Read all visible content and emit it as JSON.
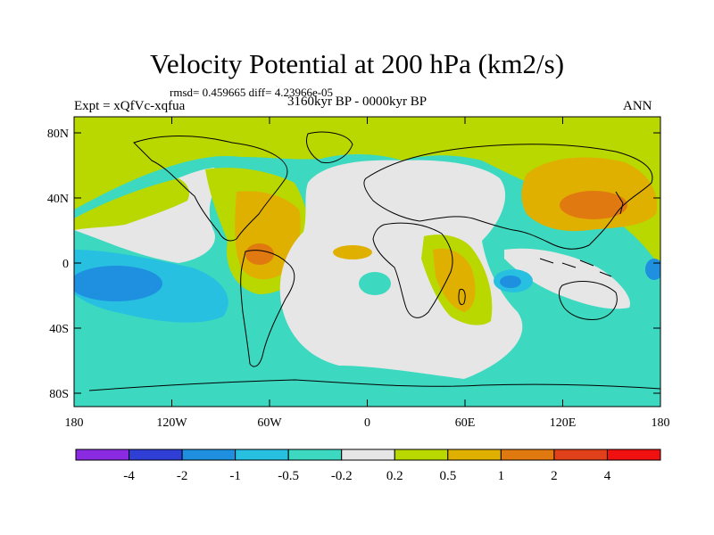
{
  "title": "Velocity Potential at 200 hPa (km2/s)",
  "stats_line": "rmsd= 0.459665 diff= 4.23966e-05",
  "experiment_label": "Expt = xQfVc-xqfua",
  "period_label": "3160kyr BP - 0000kyr BP",
  "season_label": "ANN",
  "axes": {
    "lat_ticks": [
      "80N",
      "40N",
      "0",
      "40S",
      "80S"
    ],
    "lon_ticks": [
      "180",
      "120W",
      "60W",
      "0",
      "60E",
      "120E",
      "180"
    ]
  },
  "colorbar": {
    "levels": [
      "-4",
      "-2",
      "-1",
      "-0.5",
      "-0.2",
      "0.2",
      "0.5",
      "1",
      "2",
      "4"
    ],
    "colors": [
      "#8a2be2",
      "#2f3fd6",
      "#1f8fe0",
      "#27c0e0",
      "#3cd9c0",
      "#e6e6e6",
      "#b8d800",
      "#e0b000",
      "#e07a10",
      "#e0401a",
      "#f01010"
    ]
  },
  "map_colors": {
    "ocean_background": "#3cd9c0",
    "near_zero": "#e6e6e6",
    "positive_low": "#b8d800",
    "positive_mid": "#e0b000",
    "positive_high": "#e07a10",
    "negative_low": "#27c0e0",
    "negative_mid": "#1f8fe0",
    "coastline": "#000000"
  }
}
